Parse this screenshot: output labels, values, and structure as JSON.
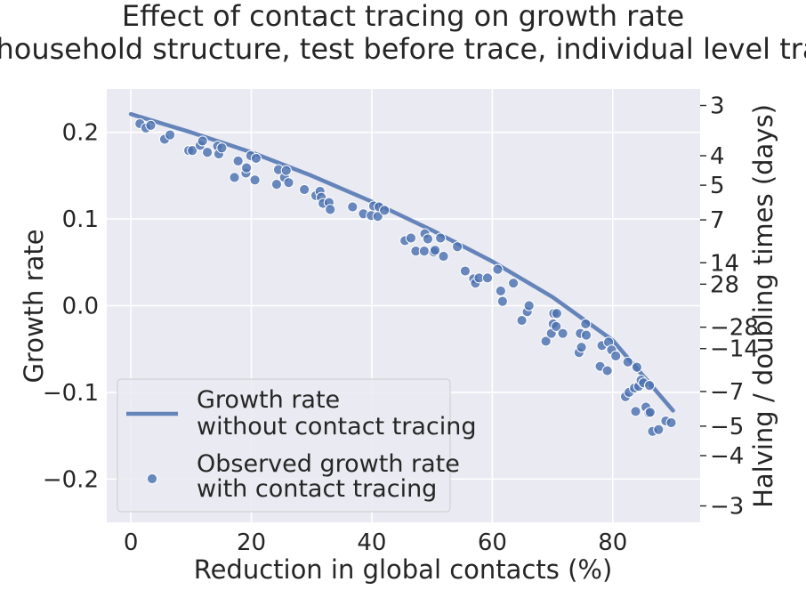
{
  "chart_data": {
    "type": "scatter",
    "title_lines": [
      "Effect of contact tracing on growth rate",
      "(with household structure, test before trace, individual level tracing)"
    ],
    "xlabel": "Reduction in global contacts (%)",
    "ylabel": "Growth rate",
    "y2label": "Halving / doubling times (days)",
    "xlim": [
      -4,
      94.5
    ],
    "ylim": [
      -0.25,
      0.25
    ],
    "xticks": [
      0,
      20,
      40,
      60,
      80
    ],
    "xtick_labels": [
      "0",
      "20",
      "40",
      "60",
      "80"
    ],
    "yticks": [
      0.2,
      0.1,
      0.0,
      -0.1,
      -0.2
    ],
    "ytick_labels": [
      "0.2",
      "0.1",
      "0.0",
      "−0.1",
      "−0.2"
    ],
    "y2ticks": [
      {
        "growth_rate": 0.231,
        "label": "3"
      },
      {
        "growth_rate": 0.173,
        "label": "4"
      },
      {
        "growth_rate": 0.139,
        "label": "5"
      },
      {
        "growth_rate": 0.099,
        "label": "7"
      },
      {
        "growth_rate": 0.0495,
        "label": "14"
      },
      {
        "growth_rate": 0.0248,
        "label": "28"
      },
      {
        "growth_rate": -0.0248,
        "label": "−28"
      },
      {
        "growth_rate": -0.0495,
        "label": "−14"
      },
      {
        "growth_rate": -0.099,
        "label": "−7"
      },
      {
        "growth_rate": -0.139,
        "label": "−5"
      },
      {
        "growth_rate": -0.173,
        "label": "−4"
      },
      {
        "growth_rate": -0.231,
        "label": "−3"
      }
    ],
    "grid": true,
    "legend_position": "lower-left",
    "colors": {
      "plot_background": "#eaeaf2",
      "grid": "#ffffff",
      "series": "#4c72b0"
    },
    "series": [
      {
        "name": "Growth rate\nwithout contact tracing",
        "kind": "line",
        "x": [
          0,
          10,
          20,
          30,
          40,
          50,
          60,
          70,
          80,
          90
        ],
        "y": [
          0.221,
          0.2,
          0.177,
          0.15,
          0.12,
          0.087,
          0.051,
          0.01,
          -0.04,
          -0.121
        ]
      },
      {
        "name": "Observed growth rate\nwith contact tracing",
        "kind": "scatter",
        "points": [
          [
            1.5,
            0.21
          ],
          [
            2.5,
            0.205
          ],
          [
            3.3,
            0.208
          ],
          [
            5.6,
            0.192
          ],
          [
            6.5,
            0.197
          ],
          [
            9.6,
            0.179
          ],
          [
            10.2,
            0.179
          ],
          [
            11.5,
            0.185
          ],
          [
            11.9,
            0.19
          ],
          [
            12.7,
            0.177
          ],
          [
            14.4,
            0.184
          ],
          [
            14.6,
            0.175
          ],
          [
            15.1,
            0.182
          ],
          [
            17.2,
            0.148
          ],
          [
            17.8,
            0.167
          ],
          [
            19.1,
            0.153
          ],
          [
            19.2,
            0.159
          ],
          [
            19.9,
            0.173
          ],
          [
            20.6,
            0.145
          ],
          [
            20.8,
            0.17
          ],
          [
            24.2,
            0.14
          ],
          [
            24.5,
            0.157
          ],
          [
            25.5,
            0.148
          ],
          [
            25.8,
            0.156
          ],
          [
            26.2,
            0.142
          ],
          [
            28.8,
            0.134
          ],
          [
            30.7,
            0.127
          ],
          [
            31.4,
            0.132
          ],
          [
            31.6,
            0.125
          ],
          [
            31.9,
            0.118
          ],
          [
            32.9,
            0.119
          ],
          [
            33.1,
            0.111
          ],
          [
            36.8,
            0.114
          ],
          [
            38.6,
            0.106
          ],
          [
            39.9,
            0.104
          ],
          [
            40.3,
            0.115
          ],
          [
            41.0,
            0.103
          ],
          [
            41.2,
            0.114
          ],
          [
            42.1,
            0.11
          ],
          [
            45.5,
            0.075
          ],
          [
            46.5,
            0.078
          ],
          [
            47.3,
            0.063
          ],
          [
            48.7,
            0.063
          ],
          [
            48.8,
            0.083
          ],
          [
            49.3,
            0.077
          ],
          [
            50.3,
            0.062
          ],
          [
            50.5,
            0.064
          ],
          [
            51.4,
            0.078
          ],
          [
            51.9,
            0.057
          ],
          [
            54.2,
            0.068
          ],
          [
            55.5,
            0.04
          ],
          [
            56.9,
            0.031
          ],
          [
            57.2,
            0.026
          ],
          [
            57.8,
            0.032
          ],
          [
            59.2,
            0.032
          ],
          [
            60.9,
            0.042
          ],
          [
            61.4,
            0.017
          ],
          [
            61.7,
            0.005
          ],
          [
            63.5,
            0.026
          ],
          [
            64.9,
            -0.017
          ],
          [
            65.8,
            -0.007
          ],
          [
            66.1,
            0.0
          ],
          [
            68.9,
            -0.041
          ],
          [
            69.8,
            -0.032
          ],
          [
            70.1,
            -0.021
          ],
          [
            70.2,
            -0.009
          ],
          [
            70.6,
            -0.024
          ],
          [
            70.7,
            -0.009
          ],
          [
            71.7,
            -0.032
          ],
          [
            74.4,
            -0.054
          ],
          [
            74.6,
            -0.032
          ],
          [
            74.8,
            -0.048
          ],
          [
            75.5,
            -0.021
          ],
          [
            75.6,
            -0.034
          ],
          [
            77.9,
            -0.07
          ],
          [
            78.2,
            -0.046
          ],
          [
            79.1,
            -0.075
          ],
          [
            79.3,
            -0.042
          ],
          [
            79.8,
            -0.051
          ],
          [
            80.5,
            -0.058
          ],
          [
            82.1,
            -0.105
          ],
          [
            82.5,
            -0.065
          ],
          [
            82.7,
            -0.1
          ],
          [
            83.6,
            -0.095
          ],
          [
            83.8,
            -0.122
          ],
          [
            84.0,
            -0.071
          ],
          [
            84.3,
            -0.093
          ],
          [
            84.7,
            -0.086
          ],
          [
            85.1,
            -0.089
          ],
          [
            85.5,
            -0.117
          ],
          [
            86.0,
            -0.124
          ],
          [
            86.1,
            -0.092
          ],
          [
            86.2,
            -0.123
          ],
          [
            86.6,
            -0.145
          ],
          [
            87.6,
            -0.143
          ],
          [
            88.8,
            -0.133
          ],
          [
            89.7,
            -0.135
          ]
        ]
      }
    ]
  }
}
